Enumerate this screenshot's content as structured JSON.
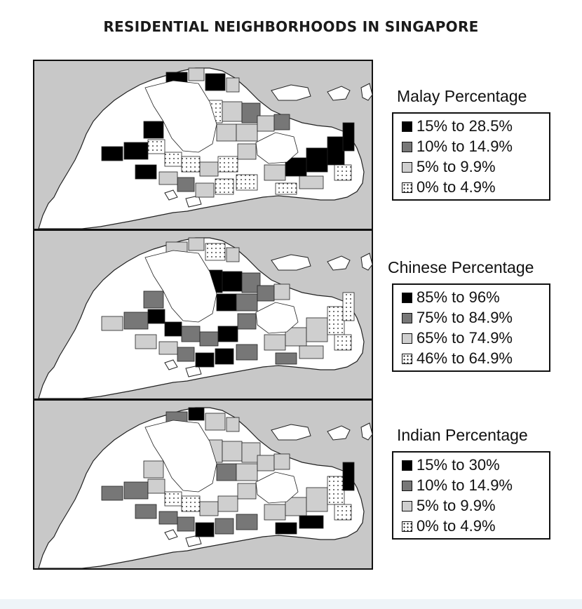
{
  "title": "RESIDENTIAL NEIGHBORHOODS IN SINGAPORE",
  "colors": {
    "sea": "#c8c8c8",
    "land": "#ffffff",
    "very_high": "#000000",
    "high": "#777777",
    "medium": "#cfcfcf",
    "low": "#ffffff"
  },
  "maps": [
    {
      "id": "malay",
      "legend_title": "Malay Percentage",
      "legend": [
        {
          "label": "15% to 28.5%",
          "fill": "black"
        },
        {
          "label": "10% to 14.9%",
          "fill": "dark-gray"
        },
        {
          "label": "5% to 9.9%",
          "fill": "light-gray"
        },
        {
          "label": "0% to 4.9%",
          "fill": "dotted"
        }
      ]
    },
    {
      "id": "chinese",
      "legend_title": "Chinese Percentage",
      "legend": [
        {
          "label": "85% to 96%",
          "fill": "black"
        },
        {
          "label": "75% to 84.9%",
          "fill": "dark-gray"
        },
        {
          "label": "65% to 74.9%",
          "fill": "light-gray"
        },
        {
          "label": "46% to 64.9%",
          "fill": "dotted"
        }
      ]
    },
    {
      "id": "indian",
      "legend_title": "Indian Percentage",
      "legend": [
        {
          "label": "15% to 30%",
          "fill": "black"
        },
        {
          "label": "10% to 14.9%",
          "fill": "dark-gray"
        },
        {
          "label": "5% to 9.9%",
          "fill": "light-gray"
        },
        {
          "label": "0% to 4.9%",
          "fill": "dotted"
        }
      ]
    }
  ]
}
